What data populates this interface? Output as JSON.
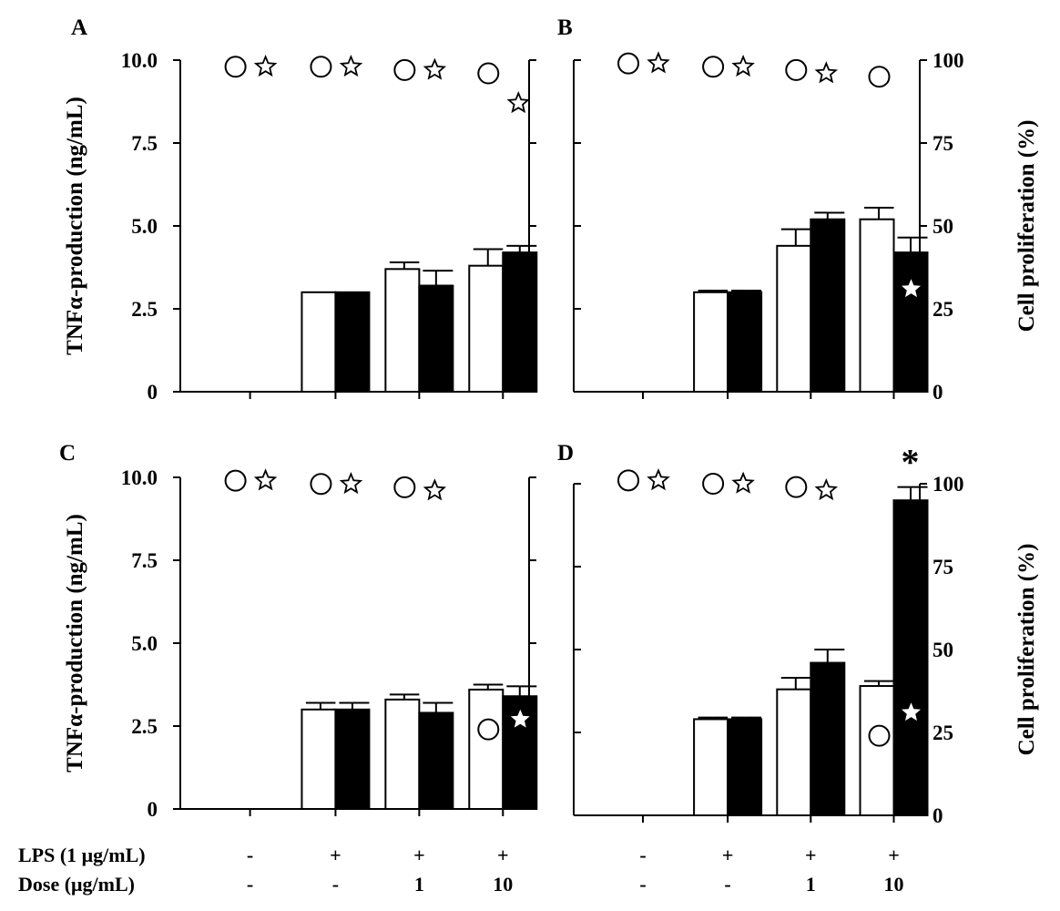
{
  "chart_data": [
    {
      "panel": "A",
      "type": "bar",
      "categories": [
        "-/-",
        "+/-",
        "+/1",
        "+/10"
      ],
      "series": [
        {
          "name": "open",
          "values": [
            0,
            3.0,
            3.7,
            3.8
          ],
          "errors": [
            0,
            0,
            0.2,
            0.5
          ]
        },
        {
          "name": "filled",
          "values": [
            0,
            3.0,
            3.2,
            4.2
          ],
          "errors": [
            0,
            0,
            0.45,
            0.2
          ]
        }
      ],
      "markers": {
        "circle": [
          98,
          98,
          97,
          96
        ],
        "star": [
          98,
          98,
          97,
          87
        ],
        "star_filled": [
          false,
          false,
          false,
          false
        ]
      },
      "ylabel": "TNFα-production (ng/mL)",
      "ylabel_right": "",
      "ylim": [
        0,
        10
      ],
      "yticks": [
        "0",
        "2.5",
        "5.0",
        "7.5",
        "10.0"
      ],
      "yticks_right": [
        "",
        "",
        "",
        "",
        ""
      ]
    },
    {
      "panel": "B",
      "type": "bar",
      "categories": [
        "-/-",
        "+/-",
        "+/1",
        "+/10"
      ],
      "series": [
        {
          "name": "open",
          "values": [
            0,
            3.0,
            4.4,
            5.2
          ],
          "errors": [
            0,
            0.05,
            0.5,
            0.35
          ]
        },
        {
          "name": "filled",
          "values": [
            0,
            3.0,
            5.2,
            4.2
          ],
          "errors": [
            0,
            0.05,
            0.2,
            0.45
          ]
        }
      ],
      "markers": {
        "circle": [
          99,
          98,
          97,
          95
        ],
        "star": [
          99,
          98,
          96,
          31
        ],
        "star_filled": [
          false,
          false,
          false,
          true
        ]
      },
      "ylabel": "",
      "ylabel_right": "Cell proliferation (%)",
      "ylim": [
        0,
        10
      ],
      "yticks": [
        "",
        "",
        "",
        "",
        ""
      ],
      "yticks_right": [
        "0",
        "25",
        "50",
        "75",
        "100"
      ]
    },
    {
      "panel": "C",
      "type": "bar",
      "categories": [
        "-/-",
        "+/-",
        "+/1",
        "+/10"
      ],
      "series": [
        {
          "name": "open",
          "values": [
            0,
            3.0,
            3.3,
            3.6
          ],
          "errors": [
            0,
            0.2,
            0.15,
            0.15
          ]
        },
        {
          "name": "filled",
          "values": [
            0,
            3.0,
            2.9,
            3.4
          ],
          "errors": [
            0,
            0.2,
            0.3,
            0.3
          ]
        }
      ],
      "markers": {
        "circle": [
          99,
          98,
          97,
          24
        ],
        "star": [
          99,
          98,
          96,
          27
        ],
        "star_filled": [
          false,
          false,
          false,
          true
        ]
      },
      "ylabel": "TNFα-production (ng/mL)",
      "ylabel_right": "",
      "ylim": [
        0,
        10
      ],
      "yticks": [
        "0",
        "2.5",
        "5.0",
        "7.5",
        "10.0"
      ],
      "yticks_right": [
        "",
        "",
        "",
        "",
        ""
      ]
    },
    {
      "panel": "D",
      "type": "bar",
      "categories": [
        "-/-",
        "+/-",
        "+/1",
        "+/10"
      ],
      "series": [
        {
          "name": "open",
          "values": [
            0,
            2.9,
            3.8,
            3.9
          ],
          "errors": [
            0,
            0.05,
            0.35,
            0.15
          ]
        },
        {
          "name": "filled",
          "values": [
            0,
            2.9,
            4.6,
            9.5
          ],
          "errors": [
            0,
            0.05,
            0.4,
            0.4
          ]
        }
      ],
      "markers": {
        "circle": [
          101,
          100,
          99,
          24
        ],
        "star": [
          101,
          100,
          98,
          31
        ],
        "star_filled": [
          false,
          false,
          false,
          true
        ]
      },
      "significance": {
        "index": 3,
        "label": "*"
      },
      "ylabel": "",
      "ylabel_right": "Cell proliferation (%)",
      "ylim": [
        0,
        10
      ],
      "yticks": [
        "",
        "",
        "",
        "",
        ""
      ],
      "yticks_right": [
        "0",
        "25",
        "50",
        "75",
        "100"
      ]
    }
  ],
  "conditions": {
    "lps_label": "LPS (1 μg/mL)",
    "dose_label": "Dose (μg/mL)",
    "lps": [
      "-",
      "+",
      "+",
      "+"
    ],
    "dose": [
      "-",
      "-",
      "1",
      "10"
    ]
  },
  "colors": {
    "open_bar": "#ffffff",
    "filled_bar": "#000000",
    "axis": "#000000"
  }
}
